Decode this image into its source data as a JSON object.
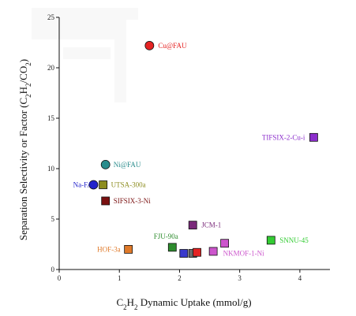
{
  "chart_data": {
    "type": "scatter",
    "title": "",
    "xlabel": "C2H2 Dynamic Uptake (mmol/g)",
    "ylabel": "Separation Selectivity or Factor (C2H2/CO2)",
    "xlim": [
      0,
      4.5
    ],
    "ylim": [
      0,
      25
    ],
    "xticks": [
      0,
      1,
      2,
      3,
      4
    ],
    "yticks": [
      0,
      5,
      10,
      15,
      20,
      25
    ],
    "grid": false,
    "points": [
      {
        "label": "Cu@FAU",
        "x": 1.5,
        "y": 22.2,
        "shape": "circle",
        "color": "#e52323",
        "show_label": true
      },
      {
        "label": "Ni@FAU",
        "x": 0.77,
        "y": 10.4,
        "shape": "circle",
        "color": "#2a8c8c",
        "show_label": true
      },
      {
        "label": "Na-FAU",
        "x": 0.57,
        "y": 8.4,
        "shape": "circle",
        "color": "#2323cc",
        "show_label": true
      },
      {
        "label": "UTSA-300a",
        "x": 0.73,
        "y": 8.4,
        "shape": "square",
        "color": "#8c8c1e",
        "show_label": true
      },
      {
        "label": "SIFSIX-3-Ni",
        "x": 0.77,
        "y": 6.8,
        "shape": "square",
        "color": "#7a1010",
        "show_label": true
      },
      {
        "label": "TIFSIX-2-Cu-i",
        "x": 4.23,
        "y": 13.1,
        "shape": "square",
        "color": "#8c2ecc",
        "show_label": true
      },
      {
        "label": "JCM-1",
        "x": 2.22,
        "y": 4.4,
        "shape": "square",
        "color": "#7a2a7a",
        "show_label": true
      },
      {
        "label": "SNNU-45",
        "x": 3.52,
        "y": 2.9,
        "shape": "square",
        "color": "#33cc33",
        "show_label": true
      },
      {
        "label": "FJU-90a",
        "x": 1.88,
        "y": 2.2,
        "shape": "square",
        "color": "#2e8c2e",
        "show_label": true
      },
      {
        "label": "HOF-3a",
        "x": 1.15,
        "y": 2.0,
        "shape": "square",
        "color": "#e07a2a",
        "show_label": true
      },
      {
        "label": "NKMOF-1-Ni",
        "x": 2.75,
        "y": 2.6,
        "shape": "square",
        "color": "#cc55cc",
        "show_label": true
      },
      {
        "label": "",
        "x": 2.56,
        "y": 1.8,
        "shape": "square",
        "color": "#cc55cc",
        "show_label": false
      },
      {
        "label": "",
        "x": 2.07,
        "y": 1.6,
        "shape": "square",
        "color": "#3a3acc",
        "show_label": false
      },
      {
        "label": "",
        "x": 2.22,
        "y": 1.6,
        "shape": "square",
        "color": "#6a6a6a",
        "show_label": false
      },
      {
        "label": "",
        "x": 2.29,
        "y": 1.7,
        "shape": "square",
        "color": "#e52323",
        "show_label": false
      }
    ]
  }
}
